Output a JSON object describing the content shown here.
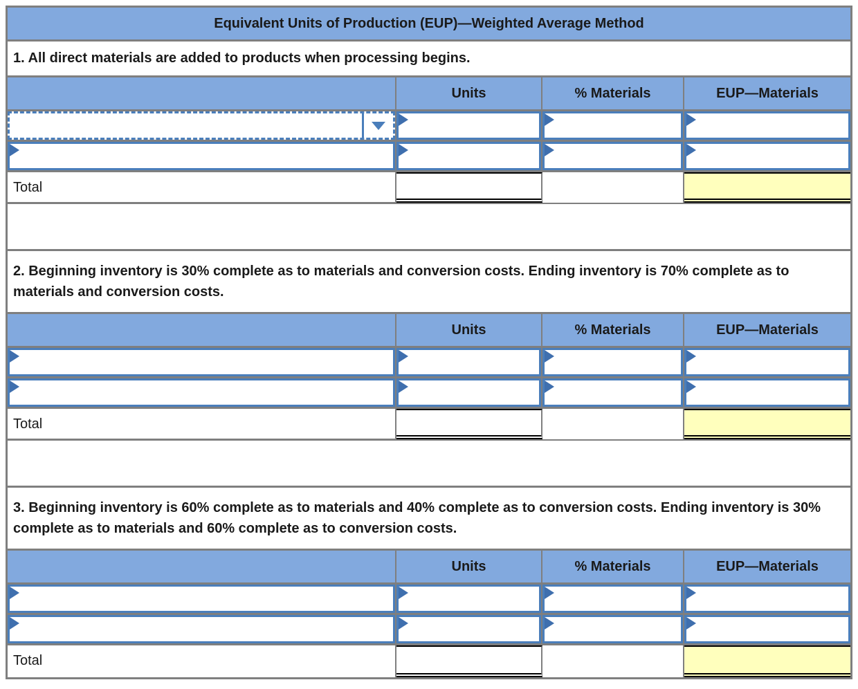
{
  "title": "Equivalent Units of Production (EUP)—Weighted Average Method",
  "columns": [
    "Units",
    "% Materials",
    "EUP—Materials"
  ],
  "sections": [
    {
      "statement": "1. All direct materials are added to products when processing begins.",
      "table": {
        "rows": [
          {
            "label": "",
            "units": "",
            "pct_materials": "",
            "eup_materials": "",
            "label_is_active_dropdown": true
          },
          {
            "label": "",
            "units": "",
            "pct_materials": "",
            "eup_materials": ""
          }
        ],
        "total": {
          "label": "Total",
          "units": "",
          "pct_materials": "",
          "eup_materials": ""
        }
      }
    },
    {
      "statement": "2. Beginning inventory is 30% complete as to materials and conversion costs. Ending inventory is 70% complete as to materials and conversion costs.",
      "table": {
        "rows": [
          {
            "label": "",
            "units": "",
            "pct_materials": "",
            "eup_materials": ""
          },
          {
            "label": "",
            "units": "",
            "pct_materials": "",
            "eup_materials": ""
          }
        ],
        "total": {
          "label": "Total",
          "units": "",
          "pct_materials": "",
          "eup_materials": ""
        }
      }
    },
    {
      "statement": "3. Beginning inventory is 60% complete as to materials and 40% complete as to conversion costs. Ending inventory is 30% complete as to materials and 60% complete as to conversion costs.",
      "table": {
        "rows": [
          {
            "label": "",
            "units": "",
            "pct_materials": "",
            "eup_materials": ""
          },
          {
            "label": "",
            "units": "",
            "pct_materials": "",
            "eup_materials": ""
          }
        ],
        "total": {
          "label": "Total",
          "units": "",
          "pct_materials": "",
          "eup_materials": ""
        }
      }
    }
  ],
  "dropdown": {
    "selected_value": ""
  },
  "icons": {
    "dropdown_arrow": "caret-down-triangle",
    "input_marker": "right-pointing-flag-triangle"
  },
  "colors": {
    "header_blue": "#82a9de",
    "input_border_blue": "#4a7ebb",
    "marker_blue": "#3f6fae",
    "total_highlight_yellow": "#ffffbd",
    "grid_gray": "#7f7f7f",
    "total_border_black": "#000000"
  }
}
